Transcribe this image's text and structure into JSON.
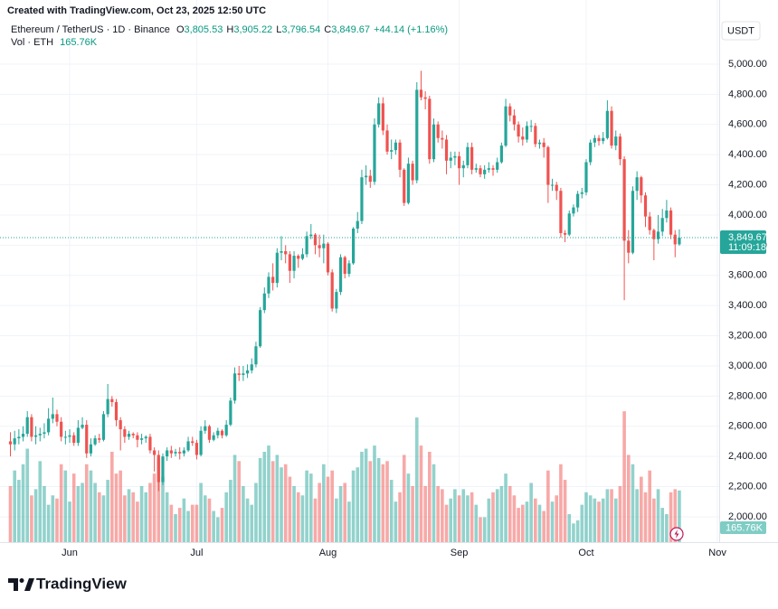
{
  "chart_data": {
    "type": "candlestick",
    "credit": "Created with TradingView.com, Oct 23, 2025 12:50 UTC",
    "symbol": "Ethereum / TetherUS · 1D · Binance",
    "legend": {
      "o_key": "O",
      "o": "3,805.53",
      "h_key": "H",
      "h": "3,905.22",
      "l_key": "L",
      "l": "3,796.54",
      "c_key": "C",
      "c": "3,849.67",
      "change": "+44.14 (+1.16%)"
    },
    "volume_title": "Vol · ETH",
    "volume_legend": "165.76K",
    "currency": "USDT",
    "price_label": "3,849.67",
    "countdown": "11:09:18",
    "volume_label": "165.76K",
    "brand": "TradingView",
    "up_color": "#26a69a",
    "down_color": "#ef5350",
    "up_volume_color": "rgba(38,166,154,0.5)",
    "down_volume_color": "rgba(239,83,80,0.5)",
    "grid": true,
    "ylim": [
      1832,
      5365
    ],
    "y2lim": [
      0,
      1711000
    ],
    "yticks": [
      {
        "value": 2000,
        "label": "2,000.00"
      },
      {
        "value": 2200,
        "label": "2,200.00"
      },
      {
        "value": 2400,
        "label": "2,400.00"
      },
      {
        "value": 2600,
        "label": "2,600.00"
      },
      {
        "value": 2800,
        "label": "2,800.00"
      },
      {
        "value": 3000,
        "label": "3,000.00"
      },
      {
        "value": 3200,
        "label": "3,200.00"
      },
      {
        "value": 3400,
        "label": "3,400.00"
      },
      {
        "value": 3600,
        "label": "3,600.00"
      },
      {
        "value": 3800,
        "label": "3,800.00"
      },
      {
        "value": 4000,
        "label": "4,000.00"
      },
      {
        "value": 4200,
        "label": "4,200.00"
      },
      {
        "value": 4400,
        "label": "4,400.00"
      },
      {
        "value": 4600,
        "label": "4,600.00"
      },
      {
        "value": 4800,
        "label": "4,800.00"
      },
      {
        "value": 5000,
        "label": "5,000.00"
      }
    ],
    "categories": [
      null,
      null,
      null,
      null,
      null,
      null,
      null,
      null,
      null,
      null,
      null,
      null,
      null,
      null,
      "Jun",
      null,
      null,
      null,
      null,
      null,
      null,
      null,
      null,
      null,
      null,
      null,
      null,
      null,
      null,
      null,
      null,
      null,
      null,
      null,
      null,
      null,
      null,
      null,
      null,
      null,
      null,
      null,
      null,
      null,
      "Jul",
      null,
      null,
      null,
      null,
      null,
      null,
      null,
      null,
      null,
      null,
      null,
      null,
      null,
      null,
      null,
      null,
      null,
      null,
      null,
      null,
      null,
      null,
      null,
      null,
      null,
      null,
      null,
      null,
      null,
      null,
      "Aug",
      null,
      null,
      null,
      null,
      null,
      null,
      null,
      null,
      null,
      null,
      null,
      null,
      null,
      null,
      null,
      null,
      null,
      null,
      null,
      null,
      null,
      null,
      null,
      null,
      null,
      null,
      null,
      null,
      null,
      null,
      "Sep",
      null,
      null,
      null,
      null,
      null,
      null,
      null,
      null,
      null,
      null,
      null,
      null,
      null,
      null,
      null,
      null,
      null,
      null,
      null,
      null,
      null,
      null,
      null,
      null,
      null,
      null,
      null,
      null,
      null,
      "Oct",
      null,
      null,
      null,
      null,
      null,
      null,
      null,
      null,
      null,
      null,
      null,
      null,
      null,
      null,
      null,
      null,
      null,
      null,
      null,
      null,
      null,
      null,
      null,
      null,
      null,
      null,
      null,
      null,
      null,
      null,
      "Nov"
    ],
    "open": [
      2500,
      2480,
      2520,
      2530,
      2550,
      2660,
      2530,
      2540,
      2550,
      2560,
      2650,
      2680,
      2630,
      2530,
      2530,
      2540,
      2490,
      2590,
      2610,
      2420,
      2480,
      2520,
      2510,
      2680,
      2780,
      2760,
      2640,
      2580,
      2530,
      2550,
      2540,
      2510,
      2520,
      2530,
      2440,
      2410,
      2230,
      2400,
      2440,
      2420,
      2430,
      2420,
      2440,
      2500,
      2490,
      2410,
      2570,
      2600,
      2510,
      2540,
      2570,
      2540,
      2610,
      2770,
      2950,
      2940,
      2950,
      2970,
      3010,
      3130,
      3370,
      3480,
      3590,
      3550,
      3750,
      3760,
      3740,
      3630,
      3730,
      3710,
      3740,
      3860,
      3870,
      3800,
      3780,
      3810,
      3620,
      3380,
      3490,
      3720,
      3610,
      3680,
      3910,
      3960,
      4250,
      4260,
      4220,
      4600,
      4740,
      4560,
      4420,
      4430,
      4480,
      4300,
      4080,
      4340,
      4230,
      4830,
      4780,
      4770,
      4370,
      4600,
      4510,
      4500,
      4360,
      4380,
      4390,
      4310,
      4330,
      4450,
      4300,
      4310,
      4270,
      4300,
      4310,
      4300,
      4350,
      4460,
      4720,
      4660,
      4600,
      4520,
      4500,
      4590,
      4590,
      4470,
      4480,
      4450,
      4200,
      4200,
      4160,
      3880,
      3870,
      4010,
      4050,
      4140,
      4150,
      4350,
      4480,
      4510,
      4490,
      4510,
      4690,
      4460,
      4520,
      4370,
      3830,
      3750,
      4160,
      4250,
      4130,
      3990,
      3900,
      3840,
      3890,
      3980,
      4030,
      3870,
      3805.53,
      null,
      null,
      null,
      null,
      null,
      null,
      null,
      null,
      null
    ],
    "high": [
      2560,
      2570,
      2580,
      2600,
      2700,
      2680,
      2600,
      2590,
      2620,
      2720,
      2790,
      2710,
      2660,
      2570,
      2580,
      2560,
      2640,
      2660,
      2640,
      2520,
      2540,
      2550,
      2700,
      2880,
      2800,
      2780,
      2660,
      2600,
      2570,
      2560,
      2560,
      2550,
      2540,
      2550,
      2460,
      2440,
      2420,
      2460,
      2470,
      2450,
      2460,
      2460,
      2530,
      2530,
      2510,
      2600,
      2640,
      2610,
      2560,
      2590,
      2580,
      2640,
      2790,
      2990,
      3000,
      3000,
      3010,
      3050,
      3160,
      3390,
      3520,
      3620,
      3680,
      3780,
      3860,
      3800,
      3760,
      3760,
      3740,
      3780,
      3890,
      3940,
      3880,
      3870,
      3870,
      3820,
      3640,
      3510,
      3740,
      3730,
      3700,
      3920,
      4020,
      4300,
      4330,
      4300,
      4640,
      4780,
      4780,
      4600,
      4500,
      4500,
      4500,
      4310,
      4380,
      4360,
      4880,
      4956,
      4820,
      4790,
      4640,
      4620,
      4560,
      4530,
      4420,
      4420,
      4420,
      4360,
      4480,
      4480,
      4340,
      4330,
      4330,
      4350,
      4330,
      4380,
      4480,
      4770,
      4740,
      4700,
      4620,
      4580,
      4620,
      4630,
      4610,
      4500,
      4510,
      4460,
      4240,
      4220,
      4180,
      3900,
      4030,
      4070,
      4160,
      4180,
      4370,
      4500,
      4530,
      4530,
      4550,
      4760,
      4720,
      4560,
      4540,
      4390,
      3900,
      4190,
      4290,
      4260,
      4150,
      4020,
      3910,
      4000,
      4040,
      4100,
      4050,
      3900,
      3905.22,
      null,
      null,
      null,
      null,
      null,
      null,
      null,
      null,
      null
    ],
    "low": [
      2400,
      2440,
      2480,
      2500,
      2530,
      2500,
      2480,
      2500,
      2520,
      2540,
      2620,
      2600,
      2500,
      2480,
      2490,
      2470,
      2470,
      2580,
      2390,
      2400,
      2470,
      2490,
      2500,
      2660,
      2730,
      2600,
      2440,
      2490,
      2510,
      2520,
      2460,
      2480,
      2490,
      2420,
      2300,
      2170,
      2210,
      2370,
      2390,
      2400,
      2380,
      2400,
      2430,
      2470,
      2380,
      2400,
      2550,
      2490,
      2500,
      2520,
      2520,
      2530,
      2600,
      2750,
      2900,
      2900,
      2920,
      2950,
      2990,
      3120,
      3350,
      3450,
      3500,
      3520,
      3700,
      3680,
      3550,
      3580,
      3650,
      3700,
      3720,
      3840,
      3740,
      3720,
      3680,
      3600,
      3360,
      3350,
      3470,
      3580,
      3590,
      3670,
      3880,
      3940,
      4200,
      4180,
      4200,
      4580,
      4530,
      4400,
      4370,
      4400,
      4250,
      4060,
      4070,
      4200,
      4210,
      4760,
      4700,
      4340,
      4350,
      4480,
      4440,
      4270,
      4310,
      4330,
      4200,
      4250,
      4310,
      4270,
      4280,
      4250,
      4240,
      4280,
      4260,
      4280,
      4340,
      4450,
      4620,
      4560,
      4480,
      4460,
      4480,
      4550,
      4450,
      4440,
      4380,
      4080,
      4160,
      4100,
      3850,
      3820,
      3860,
      3990,
      4020,
      4110,
      4130,
      4330,
      4450,
      4460,
      4470,
      4500,
      4440,
      4430,
      4330,
      3435,
      3680,
      3740,
      4100,
      4080,
      3920,
      3870,
      3700,
      3810,
      3860,
      3950,
      3840,
      3720,
      3796.54,
      null,
      null,
      null,
      null,
      null,
      null,
      null,
      null,
      null
    ],
    "close": [
      2480,
      2520,
      2530,
      2550,
      2660,
      2530,
      2540,
      2550,
      2560,
      2650,
      2680,
      2630,
      2530,
      2530,
      2540,
      2490,
      2590,
      2610,
      2420,
      2480,
      2520,
      2510,
      2680,
      2780,
      2760,
      2640,
      2580,
      2530,
      2550,
      2540,
      2510,
      2520,
      2530,
      2440,
      2410,
      2230,
      2400,
      2440,
      2420,
      2430,
      2420,
      2440,
      2500,
      2490,
      2410,
      2570,
      2600,
      2510,
      2540,
      2570,
      2540,
      2610,
      2770,
      2950,
      2940,
      2950,
      2970,
      3010,
      3130,
      3370,
      3480,
      3590,
      3550,
      3750,
      3760,
      3740,
      3630,
      3730,
      3710,
      3740,
      3860,
      3870,
      3800,
      3780,
      3810,
      3620,
      3380,
      3490,
      3720,
      3610,
      3680,
      3910,
      3960,
      4250,
      4260,
      4220,
      4600,
      4740,
      4560,
      4420,
      4430,
      4480,
      4300,
      4080,
      4340,
      4230,
      4830,
      4780,
      4770,
      4370,
      4600,
      4510,
      4500,
      4360,
      4380,
      4390,
      4310,
      4330,
      4450,
      4300,
      4310,
      4270,
      4300,
      4310,
      4300,
      4350,
      4460,
      4720,
      4660,
      4600,
      4520,
      4500,
      4590,
      4590,
      4470,
      4480,
      4450,
      4200,
      4200,
      4160,
      3880,
      3870,
      4010,
      4050,
      4140,
      4150,
      4350,
      4480,
      4510,
      4490,
      4510,
      4690,
      4460,
      4520,
      4370,
      3830,
      3750,
      4160,
      4250,
      4130,
      3990,
      3900,
      3840,
      3890,
      3980,
      4030,
      3870,
      3805.53,
      3849.67,
      null,
      null,
      null,
      null,
      null,
      null,
      null,
      null,
      null
    ],
    "volume": [
      180000,
      230000,
      200000,
      250000,
      300000,
      150000,
      170000,
      260000,
      180000,
      120000,
      150000,
      140000,
      250000,
      230000,
      130000,
      220000,
      180000,
      190000,
      250000,
      230000,
      190000,
      160000,
      150000,
      200000,
      290000,
      220000,
      230000,
      150000,
      170000,
      160000,
      130000,
      180000,
      160000,
      190000,
      220000,
      270000,
      210000,
      160000,
      120000,
      90000,
      110000,
      140000,
      100000,
      120000,
      120000,
      190000,
      150000,
      140000,
      100000,
      80000,
      110000,
      160000,
      200000,
      280000,
      260000,
      180000,
      140000,
      120000,
      190000,
      270000,
      290000,
      310000,
      260000,
      280000,
      240000,
      250000,
      210000,
      180000,
      160000,
      150000,
      230000,
      220000,
      140000,
      190000,
      250000,
      210000,
      230000,
      140000,
      180000,
      190000,
      130000,
      230000,
      240000,
      290000,
      300000,
      260000,
      310000,
      270000,
      250000,
      260000,
      200000,
      130000,
      160000,
      280000,
      220000,
      180000,
      400000,
      310000,
      180000,
      290000,
      250000,
      180000,
      170000,
      120000,
      140000,
      170000,
      150000,
      170000,
      150000,
      160000,
      120000,
      80000,
      80000,
      140000,
      160000,
      170000,
      180000,
      220000,
      180000,
      150000,
      110000,
      120000,
      130000,
      190000,
      140000,
      120000,
      100000,
      230000,
      130000,
      150000,
      250000,
      200000,
      90000,
      60000,
      70000,
      120000,
      160000,
      150000,
      140000,
      130000,
      140000,
      170000,
      170000,
      140000,
      180000,
      420000,
      280000,
      250000,
      170000,
      210000,
      160000,
      230000,
      140000,
      170000,
      110000,
      90000,
      160000,
      170000,
      165760,
      null,
      null,
      null,
      null,
      null,
      null,
      null,
      null,
      null
    ]
  }
}
